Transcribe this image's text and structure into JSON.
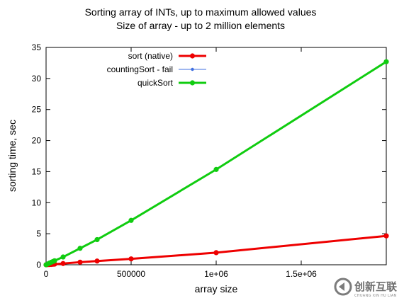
{
  "chart_data": {
    "type": "line",
    "title": "Sorting array of INTs, up to maximum allowed values",
    "subtitle": "Size of array - up to 2 million elements",
    "xlabel": "array size",
    "ylabel": "sorting time, sec",
    "xlim": [
      0,
      2000000
    ],
    "ylim": [
      0,
      35
    ],
    "xticks": [
      0,
      500000,
      1000000,
      1500000
    ],
    "xtick_labels": [
      "0",
      "500000",
      "1e+06",
      "1.5e+06"
    ],
    "yticks": [
      0,
      5,
      10,
      15,
      20,
      25,
      30,
      35
    ],
    "ytick_labels": [
      "0",
      "5",
      "10",
      "15",
      "20",
      "25",
      "30",
      "35"
    ],
    "grid": false,
    "legend_position": "top-left",
    "series": [
      {
        "name": "sort (native)",
        "color": "#ee0000",
        "x": [
          0,
          10000,
          20000,
          30000,
          40000,
          50000,
          100000,
          200000,
          300000,
          500000,
          1000000,
          2000000
        ],
        "y": [
          0.0,
          0.02,
          0.04,
          0.06,
          0.08,
          0.1,
          0.2,
          0.42,
          0.6,
          0.95,
          1.95,
          4.65
        ]
      },
      {
        "name": "countingSort - fail",
        "color": "#3f6fe0",
        "x": [],
        "y": []
      },
      {
        "name": "quickSort",
        "color": "#10cc10",
        "x": [
          0,
          10000,
          20000,
          30000,
          40000,
          50000,
          100000,
          200000,
          300000,
          500000,
          1000000,
          2000000
        ],
        "y": [
          0.0,
          0.13,
          0.27,
          0.4,
          0.52,
          0.65,
          1.25,
          2.65,
          4.05,
          7.15,
          15.35,
          32.7
        ]
      }
    ]
  },
  "watermark": {
    "text": "创新互联",
    "subtext": "CHUANG XIN HU LIAN"
  }
}
